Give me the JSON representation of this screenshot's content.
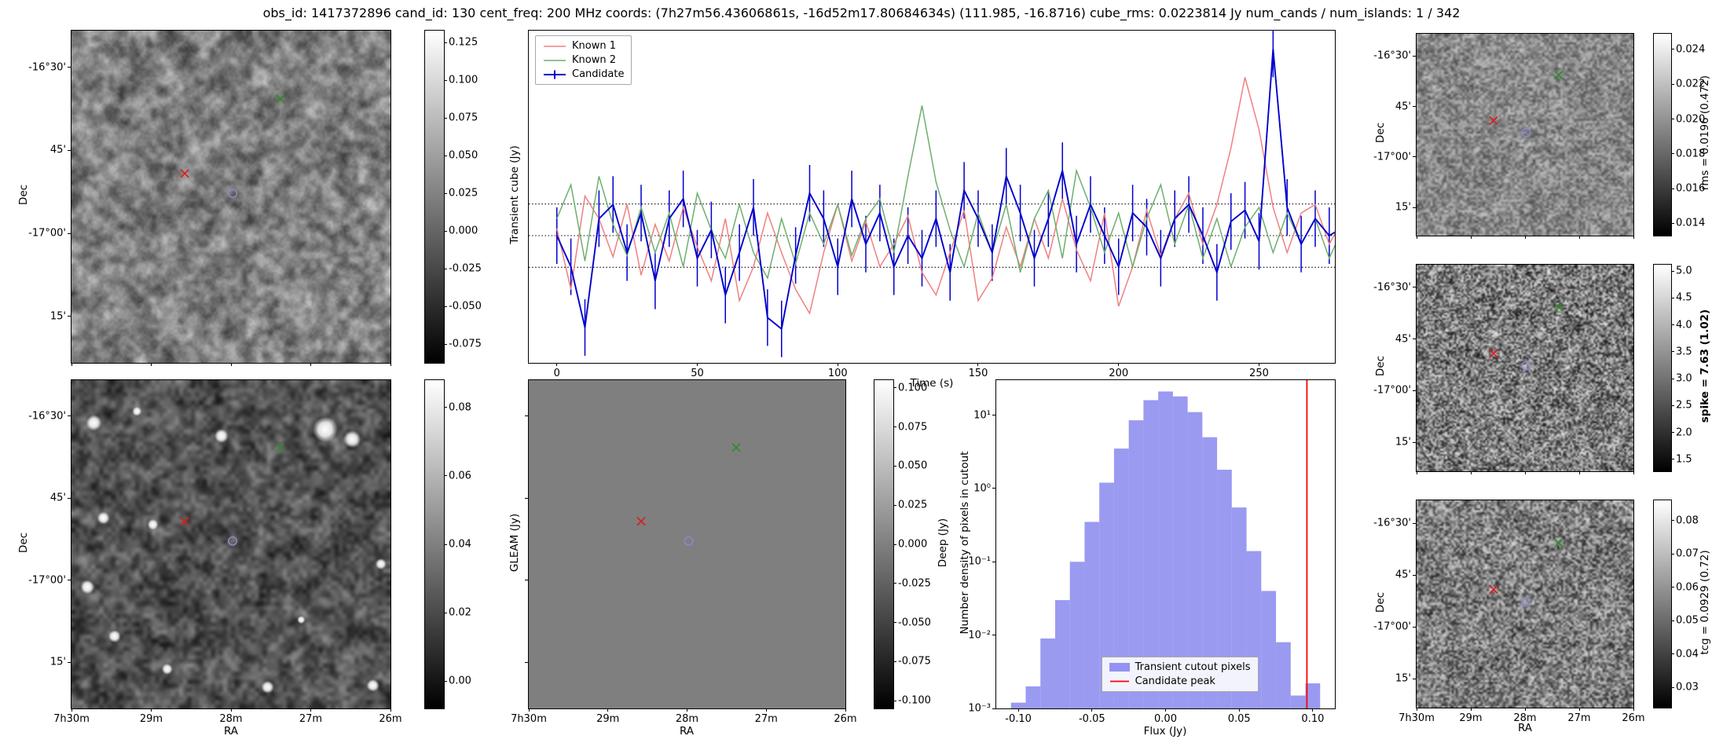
{
  "title": "obs_id: 1417372896 cand_id: 130 cent_freq: 200 MHz coords: (7h27m56.43606861s, -16d52m17.80684634s) (111.985, -16.8716) cube_rms: 0.0223814 Jy num_cands / num_islands: 1 / 342",
  "axes": {
    "dec_label": "Dec",
    "ra_label": "RA",
    "dec_ticks": [
      "-16°30'",
      "45'",
      "-17°00'",
      "15'"
    ],
    "dec_tick_pos": [
      0.11,
      0.36,
      0.61,
      0.86
    ],
    "ra_ticks": [
      "7h30m",
      "29m",
      "28m",
      "27m",
      "26m"
    ],
    "ra_tick_pos": [
      0.0,
      0.25,
      0.5,
      0.75,
      1.0
    ]
  },
  "markers": [
    {
      "shape": "x",
      "name": "known-source-1-marker",
      "color": "#d62020",
      "x": 0.355,
      "y": 0.43
    },
    {
      "shape": "x",
      "name": "known-source-2-marker",
      "color": "#2e8b2e",
      "x": 0.655,
      "y": 0.205
    },
    {
      "shape": "circle",
      "name": "candidate-marker",
      "color": "#8888cc",
      "x": 0.505,
      "y": 0.49
    }
  ],
  "colorbars": {
    "transient_cube": {
      "label": "Transient cube (Jy)",
      "vmin": -0.0875,
      "vmax": 0.133,
      "ticks": [
        "0.125",
        "0.100",
        "0.075",
        "0.050",
        "0.025",
        "0.000",
        "-0.025",
        "-0.050",
        "-0.075"
      ]
    },
    "gleam": {
      "label": "GLEAM (Jy)",
      "vmin": -0.008,
      "vmax": 0.088,
      "ticks": [
        "0.08",
        "0.06",
        "0.04",
        "0.02",
        "0.00"
      ]
    },
    "deep": {
      "label": "Deep (Jy)",
      "vmin": -0.105,
      "vmax": 0.105,
      "ticks": [
        "0.100",
        "0.075",
        "0.050",
        "0.025",
        "0.000",
        "-0.025",
        "-0.050",
        "-0.075",
        "-0.100"
      ]
    },
    "rms": {
      "label": "rms = 0.0196 (0.472)",
      "vmin": 0.0133,
      "vmax": 0.0249,
      "ticks": [
        "0.024",
        "0.022",
        "0.020",
        "0.018",
        "0.016",
        "0.014"
      ]
    },
    "spike": {
      "label": "spike = 7.63 (1.02)",
      "vmin": 1.28,
      "vmax": 5.12,
      "ticks": [
        "5.0",
        "4.5",
        "4.0",
        "3.5",
        "3.0",
        "2.5",
        "2.0",
        "1.5"
      ]
    },
    "tcg": {
      "label": "tcg = 0.0929 (0.72)",
      "vmin": 0.024,
      "vmax": 0.086,
      "ticks": [
        "0.08",
        "0.07",
        "0.06",
        "0.05",
        "0.04",
        "0.03"
      ]
    }
  },
  "chart_data": [
    {
      "id": "lightcurve",
      "type": "line",
      "title": "",
      "xlabel": "Time (s)",
      "ylabel": "",
      "xlim": [
        -10,
        277
      ],
      "ylim": [
        -0.09,
        0.145
      ],
      "x_ticks": [
        0,
        50,
        100,
        150,
        200,
        250
      ],
      "hlines": [
        0.0224,
        0.0,
        -0.0224
      ],
      "legend_position": "upper-left",
      "x": [
        0,
        5,
        10,
        15,
        20,
        25,
        30,
        35,
        40,
        45,
        50,
        55,
        60,
        65,
        70,
        75,
        80,
        85,
        90,
        95,
        100,
        105,
        110,
        115,
        120,
        125,
        130,
        135,
        140,
        145,
        150,
        155,
        160,
        165,
        170,
        175,
        180,
        185,
        190,
        195,
        200,
        205,
        210,
        215,
        220,
        225,
        230,
        235,
        240,
        245,
        250,
        255,
        260,
        265,
        270,
        275,
        280
      ],
      "series": [
        {
          "name": "Known 1",
          "color": "#f08080",
          "values": [
            0.005,
            -0.038,
            0.028,
            0.012,
            -0.015,
            0.022,
            -0.028,
            0.008,
            -0.018,
            0.02,
            -0.008,
            -0.032,
            0.012,
            -0.046,
            -0.022,
            0.016,
            -0.012,
            -0.038,
            -0.055,
            -0.012,
            0.022,
            -0.018,
            0.01,
            -0.022,
            -0.006,
            0.014,
            -0.026,
            -0.042,
            -0.012,
            0.018,
            -0.046,
            -0.03,
            0.006,
            -0.022,
            0.012,
            -0.016,
            0.026,
            -0.01,
            -0.032,
            0.016,
            -0.05,
            -0.022,
            0.018,
            -0.014,
            0.012,
            0.03,
            -0.006,
            0.022,
            0.062,
            0.112,
            0.075,
            0.02,
            -0.012,
            0.016,
            0.022,
            -0.006,
            0.012
          ]
        },
        {
          "name": "Known 2",
          "color": "#6fae6f",
          "values": [
            0.012,
            0.036,
            -0.018,
            0.042,
            0.008,
            -0.014,
            0.02,
            -0.012,
            0.016,
            -0.022,
            0.03,
            0.004,
            -0.016,
            0.022,
            -0.012,
            -0.03,
            0.012,
            -0.02,
            0.016,
            -0.006,
            0.022,
            -0.014,
            0.012,
            0.026,
            -0.012,
            0.042,
            0.092,
            0.038,
            0.004,
            -0.022,
            0.016,
            -0.012,
            0.022,
            -0.026,
            0.012,
            0.032,
            -0.016,
            0.046,
            0.02,
            -0.012,
            0.016,
            -0.022,
            0.012,
            0.036,
            -0.006,
            0.022,
            -0.016,
            0.012,
            -0.022,
            0.006,
            0.02,
            -0.012,
            0.016,
            -0.006,
            0.012,
            -0.016,
            0.006
          ]
        },
        {
          "name": "Candidate",
          "color": "#0000cc",
          "yerr": 0.02,
          "values": [
            0.0,
            -0.022,
            -0.065,
            0.012,
            0.022,
            -0.012,
            0.016,
            -0.032,
            0.012,
            0.026,
            -0.016,
            0.004,
            -0.042,
            -0.012,
            0.02,
            -0.058,
            -0.066,
            -0.014,
            0.03,
            0.012,
            -0.022,
            0.026,
            -0.006,
            0.016,
            -0.022,
            0.0,
            -0.016,
            0.012,
            -0.026,
            0.032,
            0.012,
            -0.012,
            0.042,
            0.016,
            -0.016,
            0.012,
            0.046,
            -0.006,
            0.022,
            0.0,
            -0.022,
            0.016,
            0.006,
            -0.016,
            0.012,
            0.022,
            0.0,
            -0.026,
            0.01,
            0.018,
            -0.004,
            0.132,
            0.02,
            -0.006,
            0.012,
            0.0,
            0.006
          ]
        }
      ]
    },
    {
      "id": "pixel_histogram",
      "type": "bar",
      "title": "",
      "xlabel": "Flux (Jy)",
      "ylabel": "Number density of pixels in cutout",
      "yscale": "log",
      "xlim": [
        -0.115,
        0.115
      ],
      "ylim": [
        0.001,
        30
      ],
      "fill_color": "#8181ee",
      "bin_width": 0.01,
      "bin_centers": [
        -0.1,
        -0.09,
        -0.08,
        -0.07,
        -0.06,
        -0.05,
        -0.04,
        -0.03,
        -0.02,
        -0.01,
        0.0,
        0.01,
        0.02,
        0.03,
        0.04,
        0.05,
        0.06,
        0.07,
        0.08,
        0.09,
        0.1
      ],
      "values": [
        0.0012,
        0.002,
        0.009,
        0.03,
        0.1,
        0.35,
        1.2,
        3.5,
        8.5,
        16,
        21,
        18,
        11,
        5,
        1.8,
        0.55,
        0.14,
        0.04,
        0.008,
        0.0015,
        0.0022
      ],
      "vline": {
        "x": 0.096,
        "color": "#ff0000"
      },
      "x_ticks": [
        -0.1,
        -0.05,
        0.0,
        0.05,
        0.1
      ],
      "x_tick_labels": [
        "-0.10",
        "-0.05",
        "0.00",
        "0.05",
        "0.10"
      ],
      "y_tick_exp": [
        1,
        0,
        -1,
        -2,
        -3
      ],
      "y_tick_labels": [
        "10¹",
        "10⁰",
        "10⁻¹",
        "10⁻²",
        "10⁻³"
      ],
      "legend": [
        "Transient cutout pixels",
        "Candidate peak"
      ],
      "legend_position": "lower-center"
    }
  ]
}
